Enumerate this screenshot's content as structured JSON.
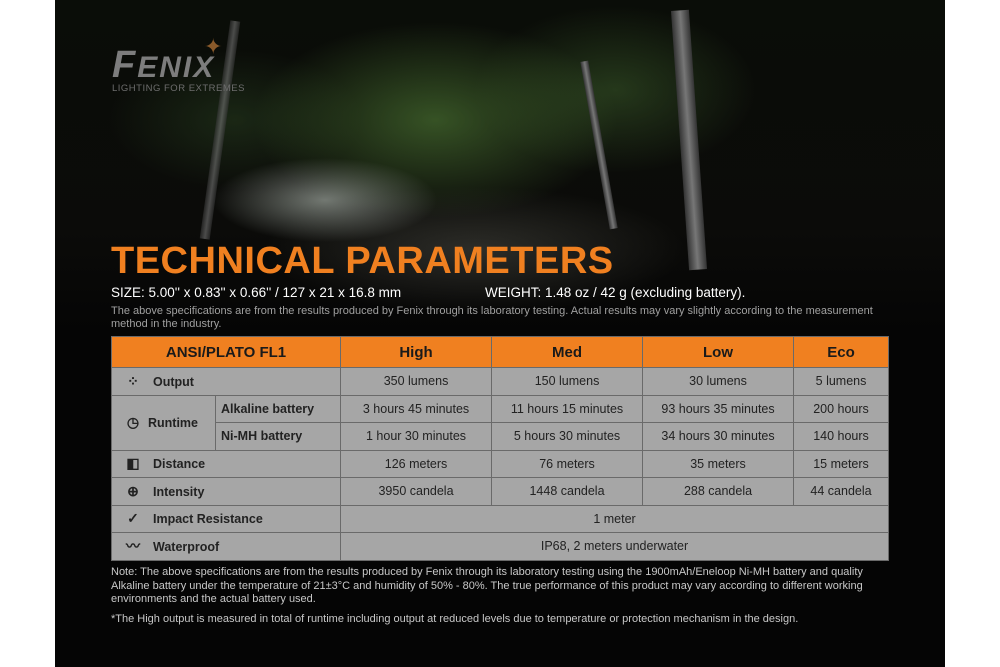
{
  "brand": {
    "name": "FENIX",
    "tagline": "LIGHTING FOR EXTREMES"
  },
  "title": "TECHNICAL PARAMETERS",
  "size": "SIZE: 5.00'' x 0.83'' x 0.66'' / 127 x 21 x 16.8 mm",
  "weight": "WEIGHT: 1.48 oz / 42 g (excluding battery).",
  "disclaimer": "The above specifications are from the results produced by Fenix through its laboratory testing. Actual results may vary slightly according to the measurement method in the industry.",
  "table": {
    "headers": [
      "ANSI/PLATO FL1",
      "High",
      "Med",
      "Low",
      "Eco"
    ],
    "output": {
      "label": "Output",
      "values": [
        "350 lumens",
        "150 lumens",
        "30 lumens",
        "5 lumens"
      ]
    },
    "runtime": {
      "label": "Runtime",
      "alkaline": {
        "label": "Alkaline battery",
        "values": [
          "3 hours 45 minutes",
          "11 hours 15 minutes",
          "93 hours 35 minutes",
          "200 hours"
        ]
      },
      "nimh": {
        "label": "Ni-MH battery",
        "values": [
          "1 hour 30 minutes",
          "5 hours 30 minutes",
          "34 hours 30 minutes",
          "140 hours"
        ]
      }
    },
    "distance": {
      "label": "Distance",
      "values": [
        "126 meters",
        "76 meters",
        "35 meters",
        "15 meters"
      ]
    },
    "intensity": {
      "label": "Intensity",
      "values": [
        "3950 candela",
        "1448 candela",
        "288 candela",
        "44 candela"
      ]
    },
    "impact": {
      "label": "Impact Resistance",
      "value": "1 meter"
    },
    "waterproof": {
      "label": "Waterproof",
      "value": "IP68, 2 meters underwater"
    }
  },
  "note": "Note: The above specifications are from the results produced by Fenix through its laboratory testing using the 1900mAh/Eneloop Ni-MH battery and quality Alkaline battery under the temperature of 21±3°C and humidity of 50% - 80%. The true performance of this product may vary according to different working environments and the actual battery used.",
  "note2": "*The High output is measured in total of runtime including output at reduced levels due to temperature or protection mechanism in the design.",
  "colors": {
    "accent": "#f08020",
    "table_bg": "#a6a6a6",
    "background": "#050505"
  }
}
